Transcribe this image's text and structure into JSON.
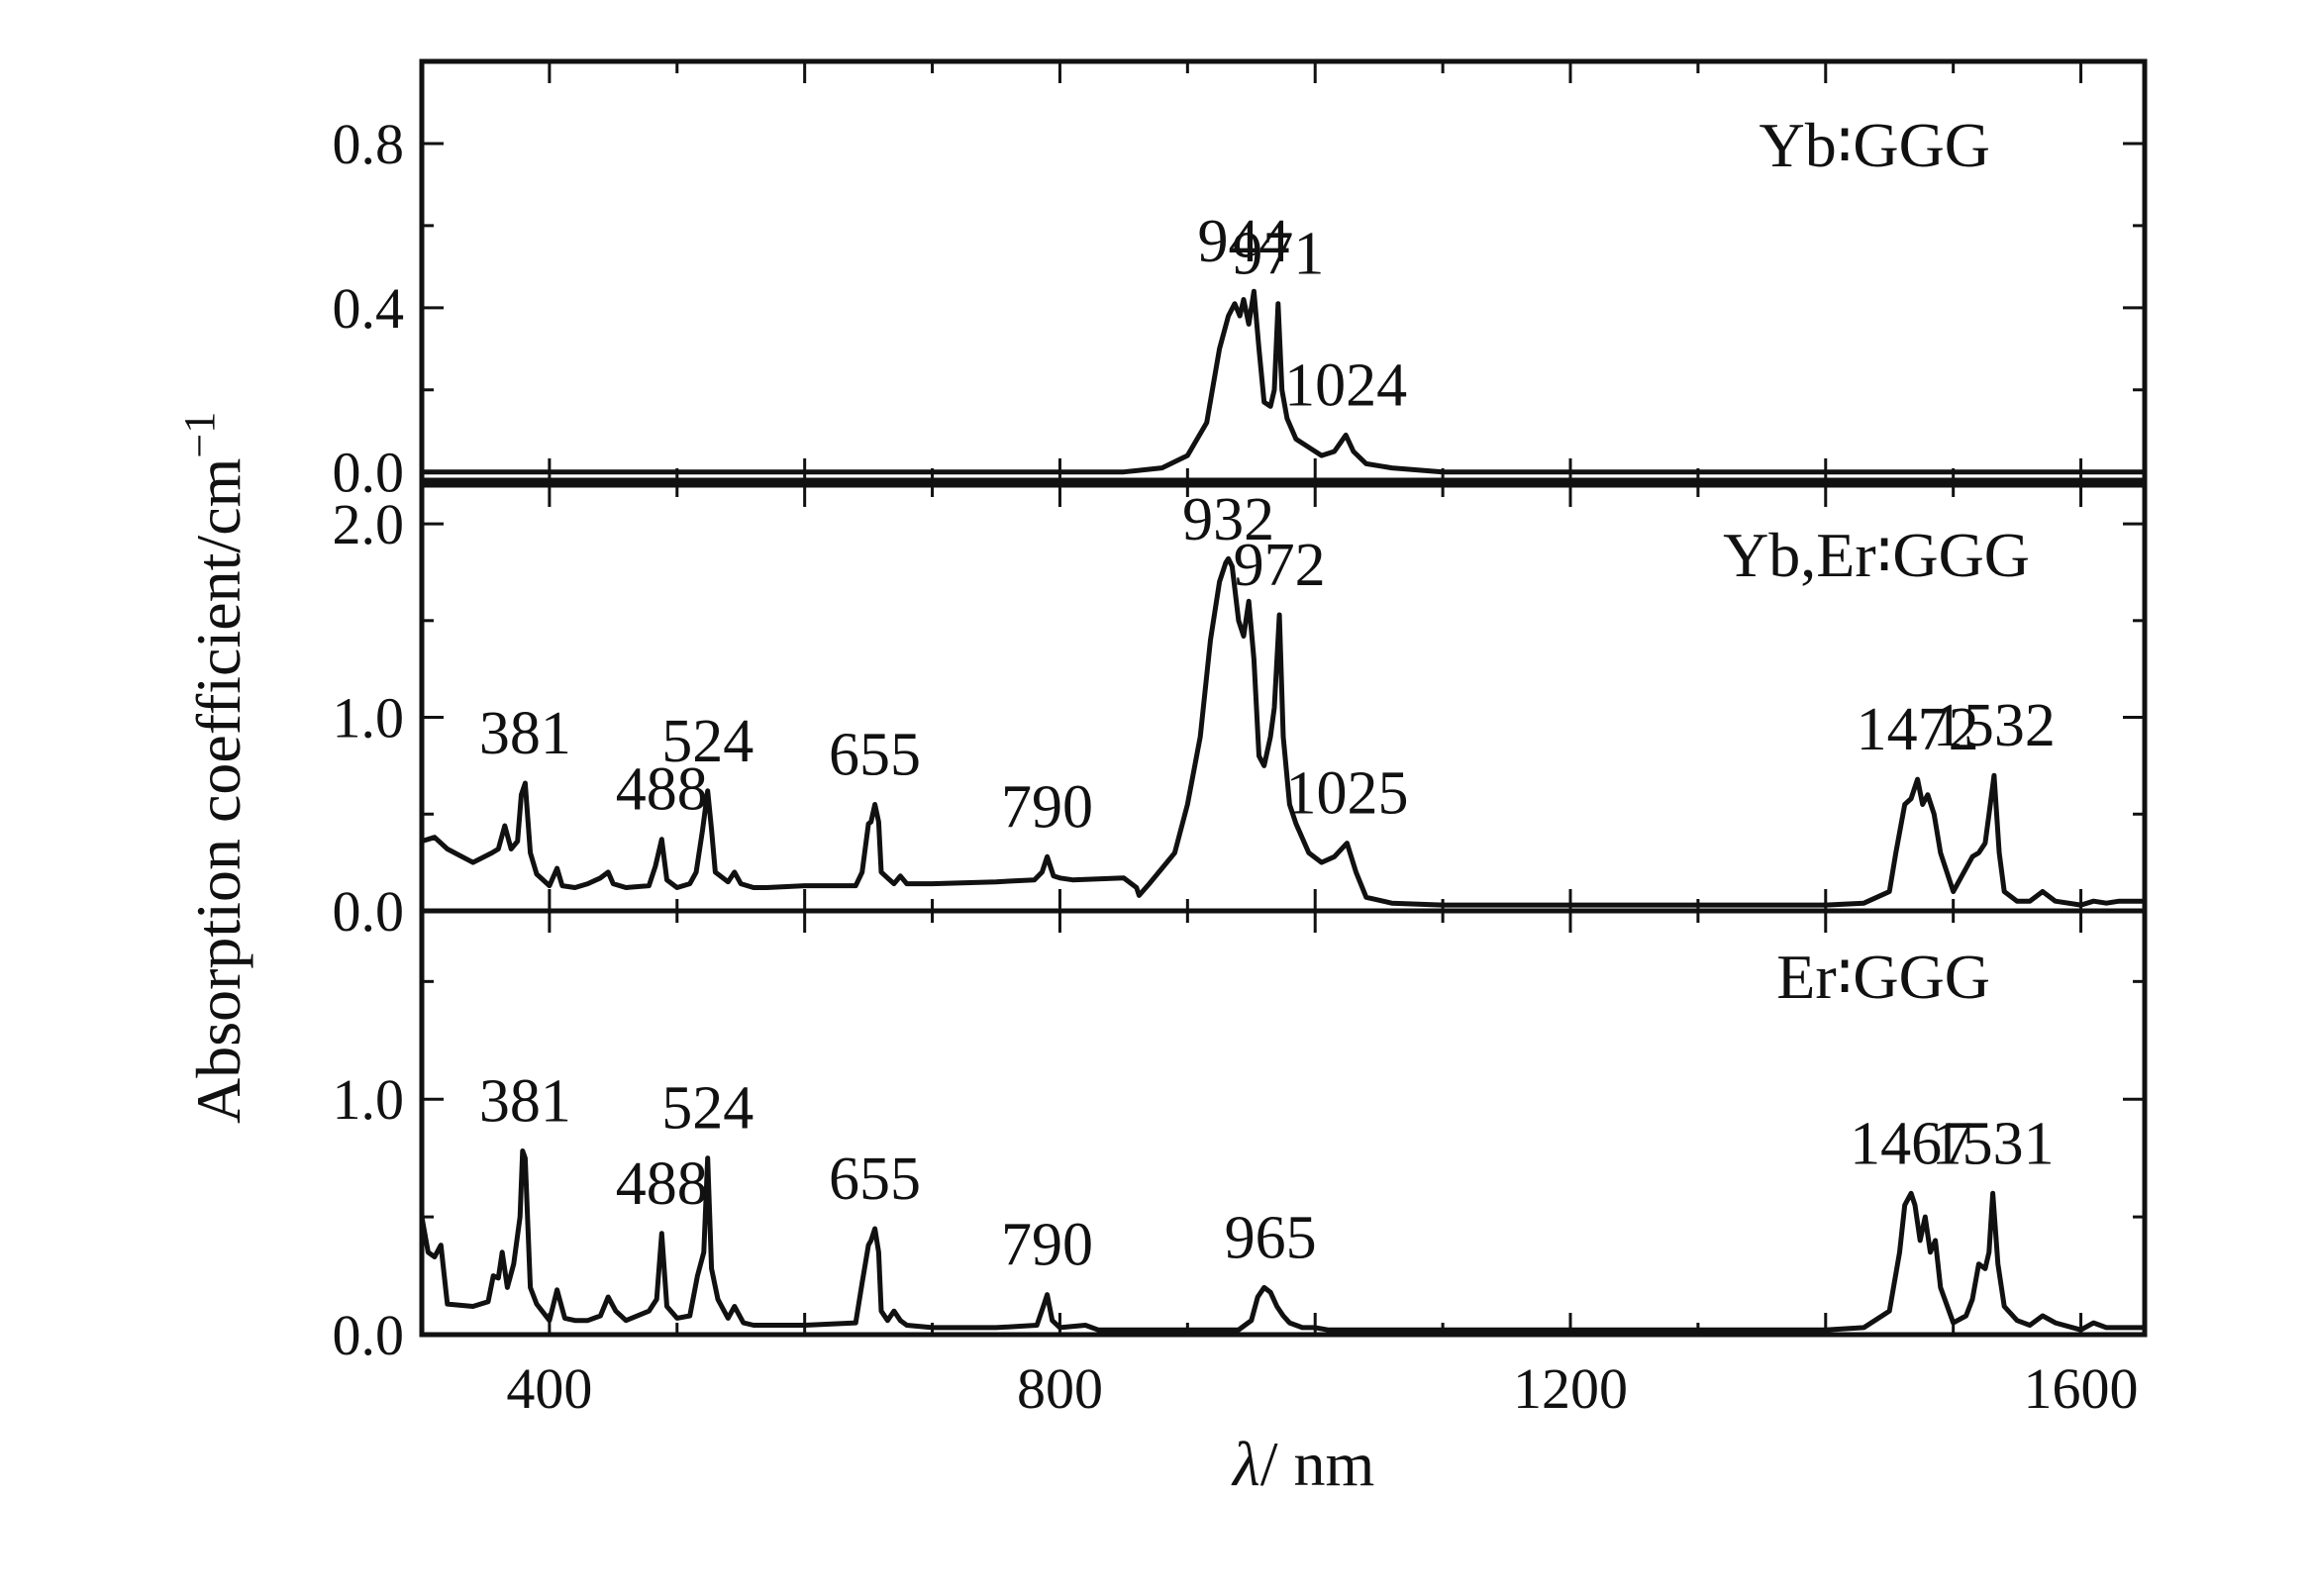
{
  "chart_data": {
    "type": "line",
    "ylabel": "Absorption coefficient/cm",
    "ylabel_sup": "−1",
    "xlabel_var": "λ",
    "xlabel_unit": "/ nm",
    "xlim": [
      300,
      1650
    ],
    "xticks": [
      400,
      800,
      1200,
      1600
    ],
    "xtick_labels": [
      "400",
      "800",
      "1200",
      "1600"
    ],
    "line_color": "#111111",
    "panels": [
      {
        "name": "Yb:GGG",
        "label": "Yb∶GGG",
        "ylim": [
          -0.02,
          1.0
        ],
        "yticks": [
          0.0,
          0.4,
          0.8
        ],
        "ytick_labels": [
          "0.0",
          "0.4",
          "0.8"
        ],
        "x": [
          300,
          600,
          850,
          880,
          900,
          915,
          925,
          932,
          937,
          941,
          944,
          948,
          952,
          956,
          960,
          965,
          968,
          971,
          974,
          978,
          985,
          995,
          1005,
          1015,
          1024,
          1030,
          1040,
          1060,
          1100,
          1300,
          1650
        ],
        "y": [
          0.0,
          0.0,
          0.0,
          0.01,
          0.04,
          0.12,
          0.3,
          0.38,
          0.41,
          0.38,
          0.42,
          0.36,
          0.44,
          0.3,
          0.17,
          0.16,
          0.2,
          0.41,
          0.2,
          0.13,
          0.08,
          0.06,
          0.04,
          0.05,
          0.09,
          0.05,
          0.02,
          0.01,
          0.0,
          0.0,
          0.0
        ],
        "annotations": [
          {
            "text": "944",
            "x": 944
          },
          {
            "text": "971",
            "x": 971
          },
          {
            "text": "1024",
            "x": 1024
          }
        ]
      },
      {
        "name": "Yb,Er:GGG",
        "label": "Yb,Er∶GGG",
        "ylim": [
          0.0,
          2.2
        ],
        "yticks": [
          0.0,
          1.0,
          2.0
        ],
        "ytick_labels": [
          "0.0",
          "1.0",
          "2.0"
        ],
        "x": [
          300,
          310,
          320,
          340,
          355,
          360,
          365,
          370,
          375,
          378,
          381,
          385,
          390,
          400,
          406,
          410,
          420,
          430,
          440,
          446,
          450,
          460,
          478,
          483,
          488,
          492,
          500,
          510,
          515,
          520,
          524,
          527,
          530,
          540,
          545,
          550,
          560,
          570,
          600,
          640,
          645,
          650,
          652,
          655,
          658,
          660,
          665,
          670,
          675,
          680,
          700,
          750,
          780,
          786,
          790,
          795,
          800,
          810,
          850,
          860,
          862,
          870,
          880,
          890,
          900,
          910,
          918,
          925,
          930,
          932,
          935,
          940,
          944,
          948,
          952,
          956,
          960,
          965,
          968,
          972,
          975,
          980,
          985,
          995,
          1005,
          1015,
          1025,
          1032,
          1040,
          1060,
          1100,
          1200,
          1300,
          1400,
          1430,
          1450,
          1455,
          1462,
          1467,
          1472,
          1476,
          1480,
          1485,
          1490,
          1500,
          1515,
          1520,
          1525,
          1528,
          1532,
          1536,
          1540,
          1550,
          1560,
          1570,
          1580,
          1600,
          1610,
          1620,
          1630,
          1650
        ],
        "y": [
          0.36,
          0.38,
          0.32,
          0.25,
          0.3,
          0.32,
          0.44,
          0.32,
          0.36,
          0.6,
          0.66,
          0.3,
          0.19,
          0.13,
          0.22,
          0.13,
          0.12,
          0.14,
          0.17,
          0.2,
          0.14,
          0.12,
          0.13,
          0.23,
          0.37,
          0.16,
          0.12,
          0.14,
          0.2,
          0.42,
          0.62,
          0.42,
          0.2,
          0.15,
          0.2,
          0.14,
          0.12,
          0.12,
          0.13,
          0.13,
          0.2,
          0.45,
          0.46,
          0.55,
          0.46,
          0.2,
          0.17,
          0.14,
          0.18,
          0.14,
          0.14,
          0.15,
          0.16,
          0.2,
          0.28,
          0.18,
          0.17,
          0.16,
          0.17,
          0.12,
          0.08,
          0.14,
          0.22,
          0.3,
          0.55,
          0.9,
          1.4,
          1.7,
          1.8,
          1.82,
          1.78,
          1.5,
          1.42,
          1.6,
          1.3,
          0.8,
          0.75,
          0.9,
          1.05,
          1.53,
          0.9,
          0.55,
          0.45,
          0.3,
          0.25,
          0.28,
          0.35,
          0.2,
          0.07,
          0.04,
          0.03,
          0.03,
          0.03,
          0.03,
          0.04,
          0.1,
          0.3,
          0.55,
          0.58,
          0.68,
          0.55,
          0.6,
          0.5,
          0.3,
          0.1,
          0.28,
          0.3,
          0.35,
          0.5,
          0.7,
          0.3,
          0.1,
          0.05,
          0.05,
          0.1,
          0.05,
          0.03,
          0.05,
          0.04,
          0.05,
          0.05
        ],
        "annotations": [
          {
            "text": "381",
            "x": 381
          },
          {
            "text": "488",
            "x": 488
          },
          {
            "text": "524",
            "x": 524
          },
          {
            "text": "655",
            "x": 655
          },
          {
            "text": "790",
            "x": 790
          },
          {
            "text": "932",
            "x": 932
          },
          {
            "text": "972",
            "x": 972
          },
          {
            "text": "1025",
            "x": 1025
          },
          {
            "text": "1472",
            "x": 1472
          },
          {
            "text": "1532",
            "x": 1532
          }
        ]
      },
      {
        "name": "Er:GGG",
        "label": "Er∶GGG",
        "ylim": [
          0.0,
          1.8
        ],
        "yticks": [
          0.0,
          1.0
        ],
        "ytick_labels": [
          "0.0",
          "1.0"
        ],
        "x": [
          300,
          305,
          310,
          315,
          320,
          340,
          352,
          356,
          360,
          363,
          367,
          372,
          377,
          379,
          381,
          385,
          390,
          400,
          406,
          412,
          420,
          430,
          440,
          446,
          452,
          460,
          478,
          484,
          488,
          492,
          500,
          510,
          516,
          521,
          524,
          527,
          532,
          540,
          545,
          552,
          560,
          600,
          640,
          645,
          650,
          652,
          655,
          658,
          660,
          665,
          670,
          675,
          680,
          700,
          750,
          782,
          787,
          790,
          794,
          800,
          820,
          830,
          900,
          940,
          950,
          955,
          960,
          965,
          970,
          975,
          980,
          990,
          1000,
          1010,
          1100,
          1300,
          1400,
          1430,
          1450,
          1458,
          1462,
          1467,
          1470,
          1474,
          1478,
          1482,
          1486,
          1490,
          1500,
          1510,
          1515,
          1520,
          1525,
          1528,
          1531,
          1535,
          1540,
          1550,
          1560,
          1570,
          1580,
          1600,
          1610,
          1620,
          1630,
          1650
        ],
        "y": [
          0.5,
          0.35,
          0.33,
          0.38,
          0.13,
          0.12,
          0.14,
          0.25,
          0.24,
          0.35,
          0.2,
          0.3,
          0.5,
          0.78,
          0.75,
          0.2,
          0.13,
          0.06,
          0.19,
          0.07,
          0.06,
          0.06,
          0.08,
          0.16,
          0.1,
          0.06,
          0.1,
          0.15,
          0.43,
          0.12,
          0.07,
          0.08,
          0.25,
          0.35,
          0.75,
          0.28,
          0.15,
          0.07,
          0.12,
          0.05,
          0.04,
          0.04,
          0.05,
          0.22,
          0.38,
          0.4,
          0.45,
          0.35,
          0.1,
          0.06,
          0.1,
          0.06,
          0.04,
          0.03,
          0.03,
          0.04,
          0.12,
          0.17,
          0.06,
          0.03,
          0.04,
          0.02,
          0.02,
          0.02,
          0.06,
          0.16,
          0.2,
          0.18,
          0.12,
          0.08,
          0.05,
          0.03,
          0.03,
          0.02,
          0.02,
          0.02,
          0.02,
          0.03,
          0.1,
          0.35,
          0.55,
          0.6,
          0.55,
          0.4,
          0.5,
          0.35,
          0.4,
          0.2,
          0.05,
          0.08,
          0.15,
          0.3,
          0.28,
          0.35,
          0.6,
          0.3,
          0.12,
          0.06,
          0.04,
          0.08,
          0.05,
          0.02,
          0.05,
          0.03,
          0.03,
          0.03
        ],
        "annotations": [
          {
            "text": "381",
            "x": 381
          },
          {
            "text": "488",
            "x": 488
          },
          {
            "text": "524",
            "x": 524
          },
          {
            "text": "655",
            "x": 655
          },
          {
            "text": "790",
            "x": 790
          },
          {
            "text": "965",
            "x": 965
          },
          {
            "text": "1467",
            "x": 1467
          },
          {
            "text": "1531",
            "x": 1531
          }
        ]
      }
    ]
  }
}
